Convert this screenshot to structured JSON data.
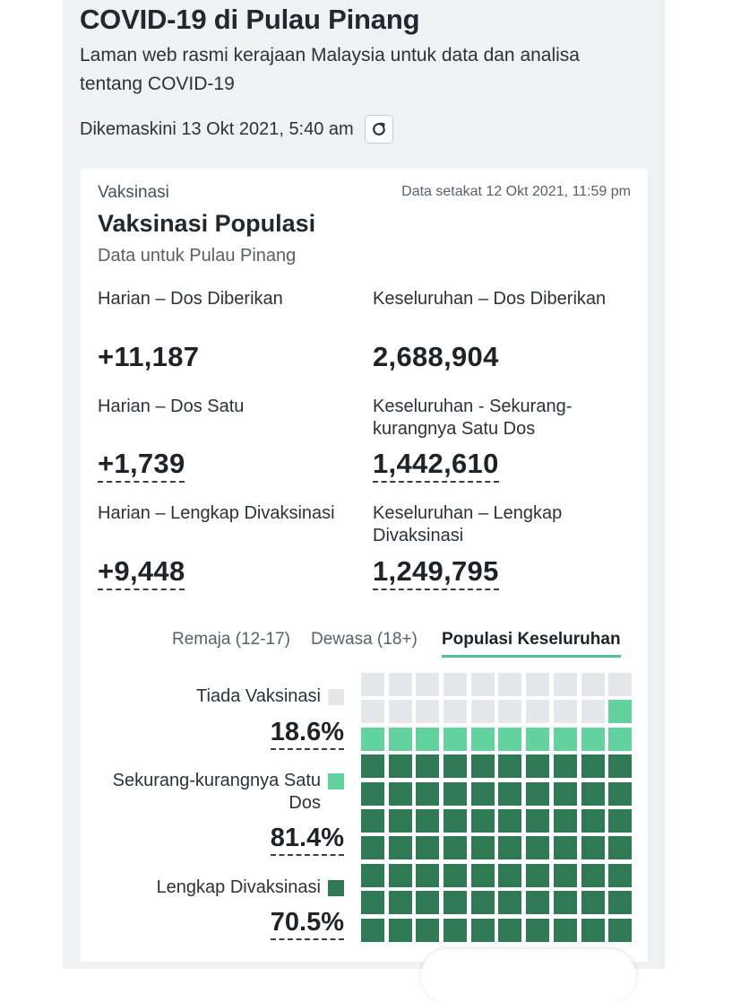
{
  "header": {
    "title": "COVID-19 di Pulau Pinang",
    "subtitle": "Laman web rasmi kerajaan Malaysia untuk data dan analisa tentang COVID-19",
    "updated": "Dikemaskini 13 Okt 2021, 5:40 am",
    "refresh_icon": "refresh-icon"
  },
  "card": {
    "section": "Vaksinasi",
    "as_of": "Data setakat 12 Okt 2021, 11:59 pm",
    "title": "Vaksinasi Populasi",
    "subtitle": "Data untuk Pulau Pinang",
    "stats": [
      {
        "label": "Harian – Dos Diberikan",
        "value": "+11,187"
      },
      {
        "label": "Keseluruhan – Dos Diberikan",
        "value": "2,688,904"
      },
      {
        "label": "Harian – Dos Satu",
        "value": "+1,739"
      },
      {
        "label": "Keseluruhan - Sekurang-kurangnya Satu Dos",
        "value": "1,442,610"
      },
      {
        "label": "Harian – Lengkap Divaksinasi",
        "value": "+9,448"
      },
      {
        "label": "Keseluruhan – Lengkap Divaksinasi",
        "value": "1,249,795"
      }
    ]
  },
  "tabs": [
    {
      "label": "Remaja (12-17)",
      "active": false
    },
    {
      "label": "Dewasa (18+)",
      "active": false
    },
    {
      "label": "Populasi Keseluruhan",
      "active": true
    }
  ],
  "legend": [
    {
      "label": "Tiada Vaksinasi",
      "pct": "18.6%",
      "color": "#e6e7ea"
    },
    {
      "label": "Sekurang-kurangnya Satu Dos",
      "pct": "81.4%",
      "color": "#62d39f"
    },
    {
      "label": "Lengkap Divaksinasi",
      "pct": "70.5%",
      "color": "#2f7a55"
    }
  ],
  "chart_data": {
    "type": "waffle",
    "total_cells": 100,
    "categories": [
      "Tiada Vaksinasi",
      "Sekurang-kurangnya Satu Dos",
      "Lengkap Divaksinasi"
    ],
    "values": [
      18.6,
      81.4,
      70.5
    ],
    "cells": {
      "none": 19,
      "partial": 11,
      "full": 70
    },
    "colors": {
      "none": "#e6e7ea",
      "partial": "#62d39f",
      "full": "#2f7a55"
    }
  }
}
